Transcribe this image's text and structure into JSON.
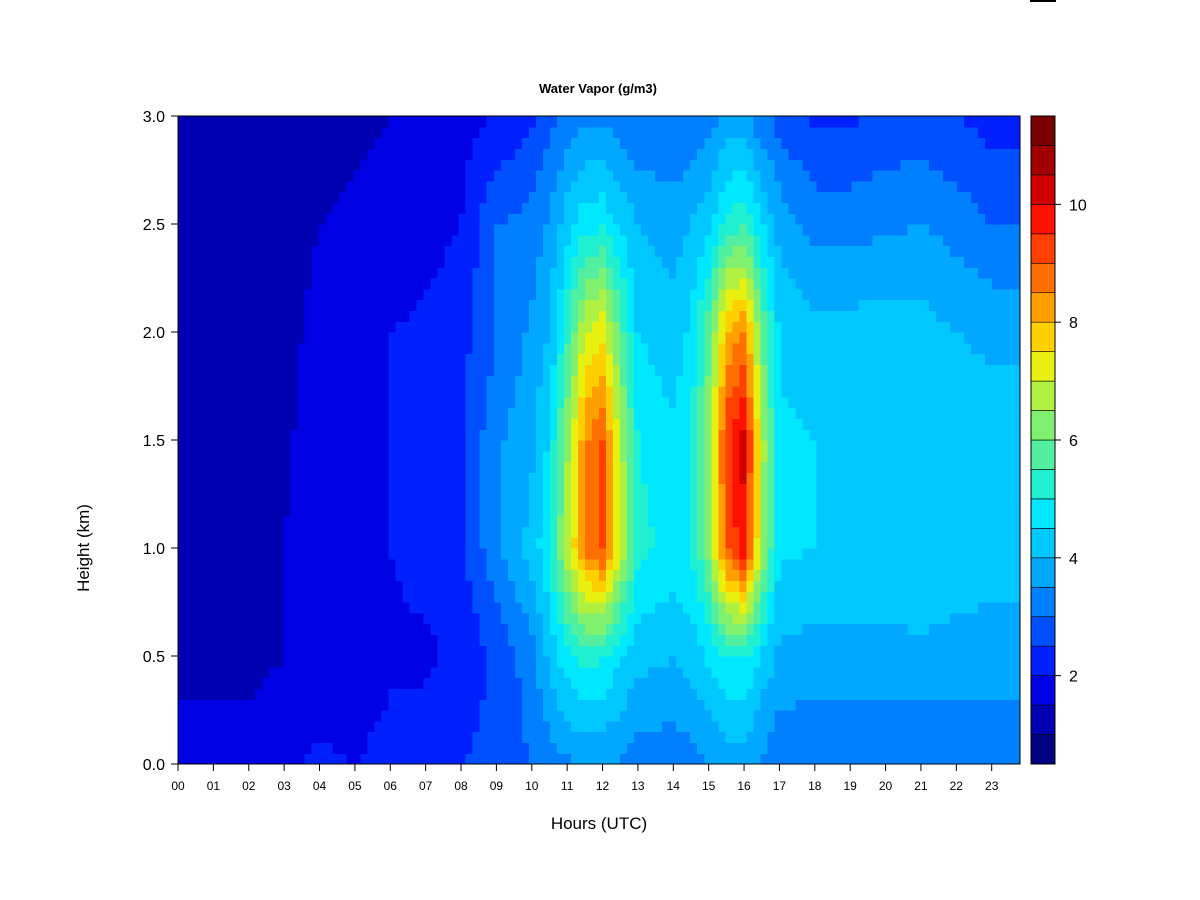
{
  "chart_data": {
    "type": "heatmap",
    "title": "Water Vapor (g/m3)",
    "xlabel": "Hours (UTC)",
    "ylabel": "Height (km)",
    "x_ticks": [
      "00",
      "01",
      "02",
      "03",
      "04",
      "05",
      "06",
      "07",
      "08",
      "09",
      "10",
      "11",
      "12",
      "13",
      "14",
      "15",
      "16",
      "17",
      "18",
      "19",
      "20",
      "21",
      "22",
      "23"
    ],
    "y_ticks": [
      "0.0",
      "0.5",
      "1.0",
      "1.5",
      "2.0",
      "2.5",
      "3.0"
    ],
    "xlim": [
      0,
      23.8
    ],
    "ylim": [
      0,
      3.0
    ],
    "colorbar": {
      "min": 0.5,
      "max": 11.5,
      "step": 0.5,
      "tick_values": [
        2,
        4,
        6,
        8,
        10
      ],
      "tick_labels": [
        "2",
        "4",
        "6",
        "8",
        "10"
      ],
      "colors": [
        "#000080",
        "#0000B2",
        "#0000E5",
        "#0020FF",
        "#0050FF",
        "#0080FF",
        "#00A8FF",
        "#00C8FF",
        "#00E8FF",
        "#20F0D0",
        "#50F0A0",
        "#80F070",
        "#B0F040",
        "#E8F010",
        "#FFD000",
        "#FFA000",
        "#FF7000",
        "#FF4000",
        "#FF1000",
        "#D00000",
        "#A00000",
        "#780000"
      ]
    },
    "profiles": [
      {
        "hour": 0.0,
        "values": [
          1.8,
          1.3,
          1.1,
          1.1,
          1.1,
          1.1,
          1.0
        ]
      },
      {
        "hour": 1.0,
        "values": [
          1.8,
          1.3,
          1.2,
          1.1,
          1.1,
          1.0,
          1.0
        ]
      },
      {
        "hour": 2.0,
        "values": [
          1.8,
          1.3,
          1.2,
          1.1,
          1.1,
          1.1,
          1.0
        ]
      },
      {
        "hour": 3.0,
        "values": [
          1.9,
          1.5,
          1.5,
          1.4,
          1.3,
          1.2,
          1.1
        ]
      },
      {
        "hour": 4.0,
        "values": [
          2.1,
          1.6,
          1.9,
          1.8,
          1.7,
          1.5,
          1.3
        ]
      },
      {
        "hour": 5.0,
        "values": [
          2.0,
          1.6,
          2.0,
          1.9,
          1.8,
          1.6,
          1.4
        ]
      },
      {
        "hour": 6.0,
        "values": [
          2.2,
          1.9,
          2.0,
          2.0,
          2.0,
          1.7,
          1.5
        ]
      },
      {
        "hour": 7.0,
        "values": [
          2.3,
          1.9,
          2.2,
          2.2,
          2.1,
          1.8,
          1.7
        ]
      },
      {
        "hour": 8.0,
        "values": [
          2.5,
          2.1,
          2.4,
          2.4,
          2.3,
          2.0,
          1.8
        ]
      },
      {
        "hour": 9.0,
        "values": [
          2.7,
          2.6,
          3.4,
          3.4,
          3.0,
          3.0,
          2.0
        ]
      },
      {
        "hour": 10.0,
        "values": [
          3.0,
          3.3,
          4.2,
          3.9,
          3.6,
          3.2,
          2.4
        ]
      },
      {
        "hour": 10.5,
        "values": [
          3.2,
          4.2,
          5.0,
          4.6,
          4.0,
          3.6,
          2.8
        ]
      },
      {
        "hour": 11.0,
        "values": [
          3.4,
          4.8,
          6.8,
          6.4,
          5.4,
          4.3,
          3.2
        ]
      },
      {
        "hour": 11.5,
        "values": [
          3.6,
          5.2,
          8.6,
          8.4,
          7.0,
          4.8,
          3.4
        ]
      },
      {
        "hour": 12.0,
        "values": [
          3.6,
          5.0,
          9.2,
          9.0,
          7.4,
          4.9,
          3.4
        ]
      },
      {
        "hour": 12.5,
        "values": [
          3.4,
          4.6,
          7.0,
          6.8,
          5.8,
          4.4,
          3.2
        ]
      },
      {
        "hour": 13.0,
        "values": [
          3.2,
          4.2,
          5.2,
          5.0,
          4.5,
          4.0,
          3.0
        ]
      },
      {
        "hour": 14.0,
        "values": [
          3.2,
          4.0,
          4.8,
          4.6,
          4.2,
          3.8,
          3.0
        ]
      },
      {
        "hour": 14.5,
        "values": [
          3.3,
          4.2,
          5.0,
          5.0,
          4.6,
          4.0,
          3.1
        ]
      },
      {
        "hour": 15.0,
        "values": [
          3.5,
          4.6,
          6.2,
          6.4,
          5.8,
          4.4,
          3.3
        ]
      },
      {
        "hour": 15.5,
        "values": [
          3.7,
          5.0,
          9.0,
          9.4,
          8.0,
          5.2,
          3.6
        ]
      },
      {
        "hour": 16.0,
        "values": [
          3.7,
          5.0,
          9.8,
          10.2,
          8.6,
          5.4,
          3.6
        ]
      },
      {
        "hour": 16.5,
        "values": [
          3.4,
          4.4,
          6.6,
          6.8,
          6.0,
          4.6,
          3.1
        ]
      },
      {
        "hour": 17.0,
        "values": [
          3.1,
          3.9,
          4.6,
          4.6,
          4.4,
          3.8,
          2.8
        ]
      },
      {
        "hour": 18.0,
        "values": [
          3.0,
          3.8,
          4.5,
          4.5,
          4.2,
          3.3,
          2.4
        ]
      },
      {
        "hour": 19.0,
        "values": [
          3.0,
          3.8,
          4.4,
          4.5,
          4.2,
          3.3,
          2.4
        ]
      },
      {
        "hour": 20.0,
        "values": [
          3.0,
          3.8,
          4.4,
          4.4,
          4.3,
          3.4,
          2.6
        ]
      },
      {
        "hour": 21.0,
        "values": [
          3.0,
          3.9,
          4.4,
          4.4,
          4.2,
          3.5,
          2.7
        ]
      },
      {
        "hour": 22.0,
        "values": [
          3.0,
          3.8,
          4.3,
          4.3,
          4.0,
          3.3,
          2.5
        ]
      },
      {
        "hour": 23.0,
        "values": [
          3.0,
          3.8,
          4.2,
          4.2,
          3.9,
          3.0,
          2.3
        ]
      },
      {
        "hour": 23.8,
        "values": [
          3.0,
          3.8,
          4.2,
          4.2,
          3.9,
          3.0,
          2.3
        ]
      }
    ],
    "profile_heights": [
      0.0,
      0.5,
      1.0,
      1.5,
      2.0,
      2.5,
      3.0
    ]
  }
}
